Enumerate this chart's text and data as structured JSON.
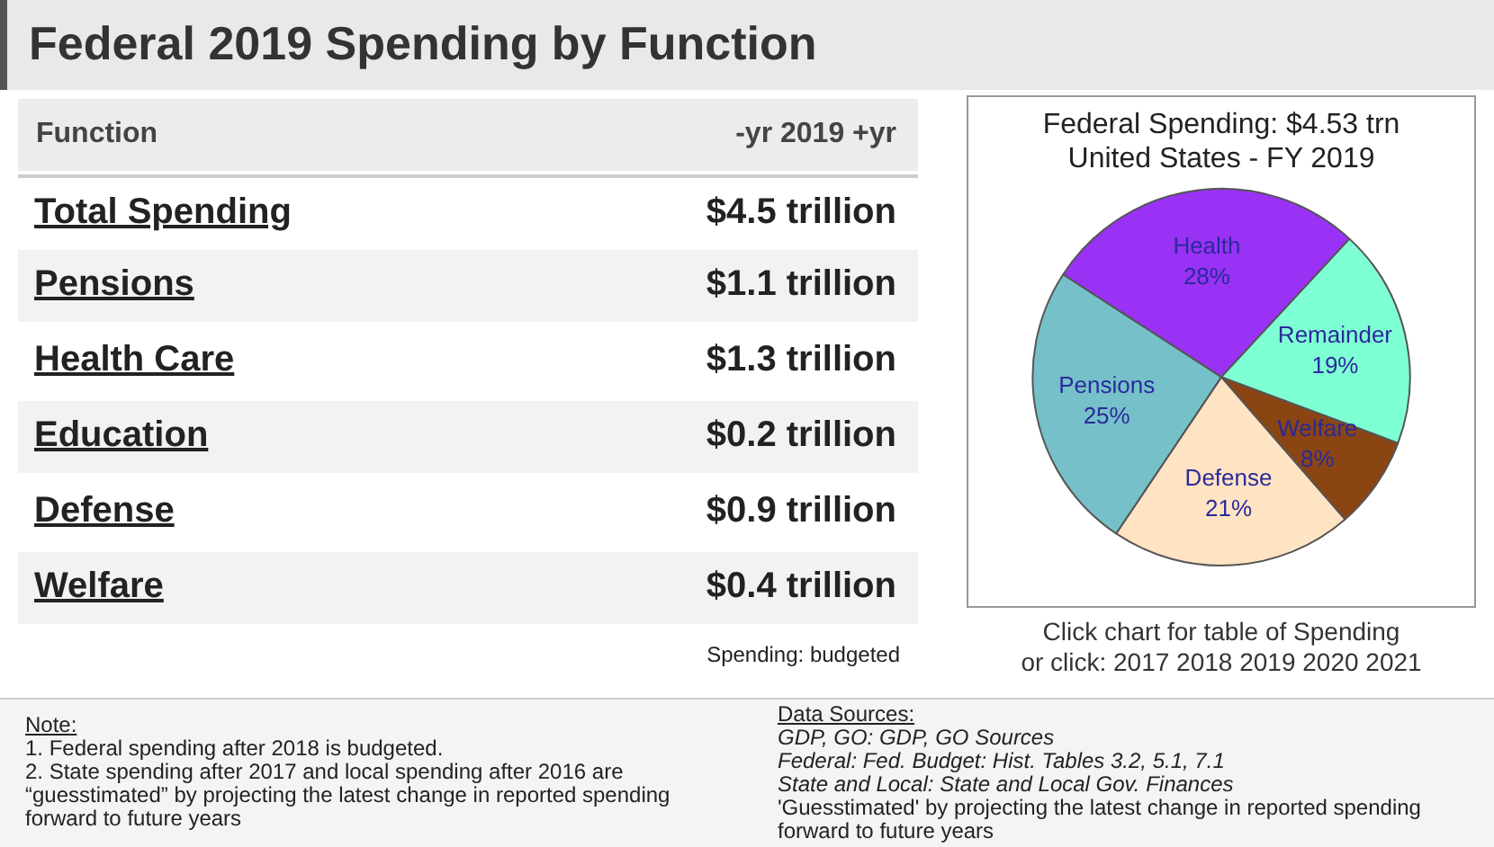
{
  "chart_data": [
    {
      "type": "other",
      "title": "Federal 2019 Spending by Function",
      "categories": [
        "Total Spending",
        "Pensions",
        "Health Care",
        "Education",
        "Defense",
        "Welfare"
      ],
      "value_labels": [
        "$4.5 trillion",
        "$1.1 trillion",
        "$1.3 trillion",
        "$0.2 trillion",
        "$0.9 trillion",
        "$0.4 trillion"
      ],
      "annotations": [
        "Function",
        "-yr 2019 +yr",
        "Spending: budgeted",
        "Click chart for table of Spending",
        "or click: 2017 2018 2019 2020 2021",
        "Note:",
        "1. Federal spending after 2018 is budgeted.",
        "2. State spending after 2017 and local spending after 2016 are “guesstimated” by projecting the latest change in reported spending forward to future years",
        "Data Sources:",
        "GDP, GO: GDP, GO Sources",
        "Federal: Fed. Budget: Hist. Tables 3.2, 5.1, 7.1",
        "State and Local: State and Local Gov. Finances",
        "'Guesstimated' by projecting the latest change in reported spending forward to future years"
      ]
    },
    {
      "type": "pie",
      "title": "Federal Spending: $4.53 trn",
      "subtitle": "United States - FY 2019",
      "categories": [
        "Health",
        "Remainder",
        "Welfare",
        "Defense",
        "Pensions"
      ],
      "values": [
        28,
        19,
        8,
        21,
        25
      ],
      "value_labels": [
        "28%",
        "19%",
        "8%",
        "21%",
        "25%"
      ],
      "colors": [
        "#9932f5",
        "#7fffd4",
        "#8b4513",
        "#ffe4c4",
        "#76c1c9"
      ],
      "legend": false
    }
  ]
}
